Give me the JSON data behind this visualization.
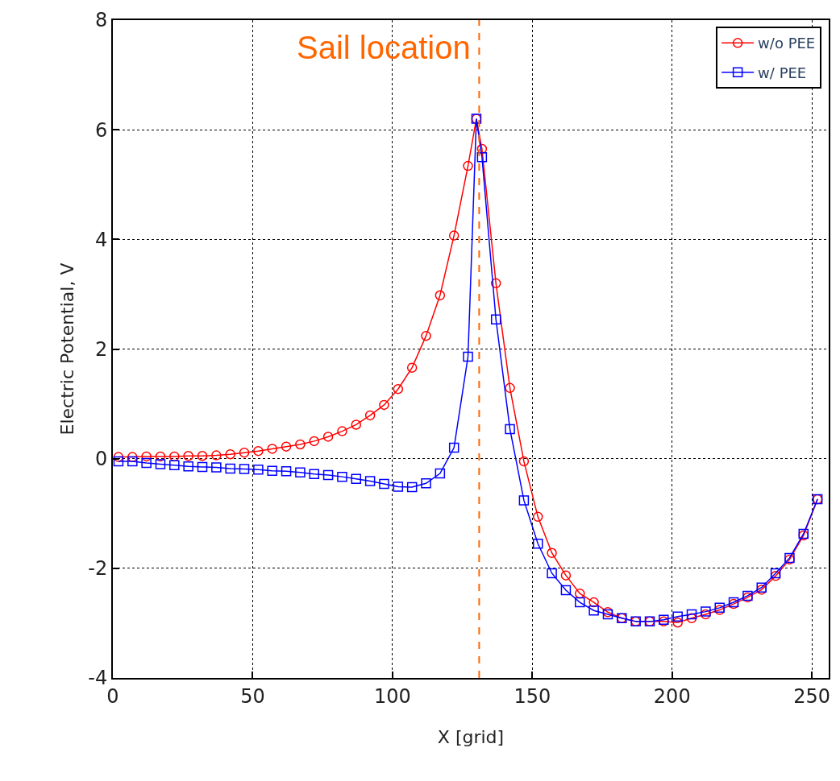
{
  "chart_data": {
    "type": "line",
    "xlabel": "X [grid]",
    "ylabel": "Electric Potential, V",
    "xlim": [
      0,
      256
    ],
    "xticks": [
      0,
      50,
      100,
      150,
      200,
      250
    ],
    "ylim": [
      -4,
      8
    ],
    "yticks": [
      -4,
      -2,
      0,
      2,
      4,
      6,
      8
    ],
    "grid": true,
    "legend": "top right",
    "ref_lines": [
      {
        "axis": "x",
        "value": 131,
        "label": "Sail location",
        "color": "#ff6600",
        "line_style": "dashed"
      }
    ],
    "x": [
      2,
      7,
      12,
      17,
      22,
      27,
      32,
      37,
      42,
      47,
      52,
      57,
      62,
      67,
      72,
      77,
      82,
      87,
      92,
      97,
      102,
      107,
      112,
      117,
      122,
      127,
      130,
      132,
      137,
      142,
      147,
      152,
      157,
      162,
      167,
      172,
      177,
      182,
      187,
      192,
      197,
      202,
      207,
      212,
      217,
      222,
      227,
      232,
      237,
      242,
      247,
      252
    ],
    "series": [
      {
        "name": "w/o PEE",
        "color": "#ff0000",
        "marker": "circle",
        "values": [
          0.03,
          0.03,
          0.04,
          0.04,
          0.04,
          0.05,
          0.05,
          0.06,
          0.08,
          0.11,
          0.14,
          0.18,
          0.22,
          0.26,
          0.32,
          0.4,
          0.5,
          0.62,
          0.79,
          0.98,
          1.27,
          1.66,
          2.24,
          2.98,
          4.07,
          5.34,
          6.2,
          5.65,
          3.2,
          1.29,
          -0.05,
          -1.06,
          -1.72,
          -2.13,
          -2.46,
          -2.62,
          -2.8,
          -2.91,
          -2.97,
          -2.97,
          -2.97,
          -2.99,
          -2.91,
          -2.84,
          -2.76,
          -2.65,
          -2.53,
          -2.39,
          -2.14,
          -1.84,
          -1.4,
          -0.74
        ]
      },
      {
        "name": "w/ PEE",
        "color": "#0000ff",
        "marker": "square",
        "values": [
          -0.05,
          -0.05,
          -0.08,
          -0.1,
          -0.12,
          -0.14,
          -0.15,
          -0.16,
          -0.18,
          -0.19,
          -0.2,
          -0.22,
          -0.23,
          -0.25,
          -0.28,
          -0.3,
          -0.33,
          -0.37,
          -0.41,
          -0.46,
          -0.51,
          -0.52,
          -0.45,
          -0.27,
          0.2,
          1.86,
          6.2,
          5.5,
          2.54,
          0.54,
          -0.76,
          -1.55,
          -2.09,
          -2.4,
          -2.62,
          -2.77,
          -2.84,
          -2.91,
          -2.97,
          -2.97,
          -2.94,
          -2.88,
          -2.84,
          -2.79,
          -2.72,
          -2.62,
          -2.5,
          -2.35,
          -2.09,
          -1.81,
          -1.37,
          -0.74
        ]
      }
    ]
  }
}
